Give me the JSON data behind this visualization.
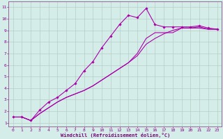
{
  "xlabel": "Windchill (Refroidissement éolien,°C)",
  "bg_color": "#d5ede8",
  "line_color": "#aa00aa",
  "grid_color": "#b8ccc8",
  "xlim": [
    -0.5,
    23.5
  ],
  "ylim": [
    0.7,
    11.5
  ],
  "xticks": [
    0,
    1,
    2,
    3,
    4,
    5,
    6,
    7,
    8,
    9,
    10,
    11,
    12,
    13,
    14,
    15,
    16,
    17,
    18,
    19,
    20,
    21,
    22,
    23
  ],
  "yticks": [
    1,
    2,
    3,
    4,
    5,
    6,
    7,
    8,
    9,
    10,
    11
  ],
  "line1_x": [
    0,
    1,
    2,
    3,
    4,
    5,
    6,
    7,
    8,
    9,
    10,
    11,
    12,
    13,
    14,
    15,
    16,
    17,
    18,
    19,
    20,
    21,
    22,
    23
  ],
  "line1_y": [
    1.5,
    1.5,
    1.2,
    2.1,
    2.8,
    3.2,
    3.8,
    4.4,
    5.5,
    6.3,
    7.5,
    8.5,
    9.5,
    10.3,
    10.1,
    10.9,
    9.5,
    9.3,
    9.3,
    9.3,
    9.3,
    9.4,
    9.2,
    9.1
  ],
  "line2_x": [
    0,
    1,
    2,
    3,
    4,
    5,
    6,
    7,
    8,
    9,
    10,
    11,
    12,
    13,
    14,
    15,
    16,
    17,
    18,
    19,
    20,
    21,
    22,
    23
  ],
  "line2_y": [
    1.5,
    1.5,
    1.2,
    1.8,
    2.3,
    2.8,
    3.2,
    3.5,
    3.8,
    4.2,
    4.7,
    5.2,
    5.7,
    6.2,
    6.8,
    7.8,
    8.3,
    8.7,
    9.0,
    9.2,
    9.2,
    9.2,
    9.1,
    9.1
  ],
  "line3_x": [
    0,
    1,
    2,
    3,
    4,
    5,
    6,
    7,
    8,
    9,
    10,
    11,
    12,
    13,
    14,
    15,
    16,
    17,
    18,
    19,
    20,
    21,
    22,
    23
  ],
  "line3_y": [
    1.5,
    1.5,
    1.2,
    1.8,
    2.3,
    2.8,
    3.2,
    3.5,
    3.8,
    4.2,
    4.7,
    5.2,
    5.7,
    6.2,
    7.0,
    8.3,
    8.8,
    8.8,
    8.8,
    9.2,
    9.2,
    9.3,
    9.1,
    9.1
  ]
}
